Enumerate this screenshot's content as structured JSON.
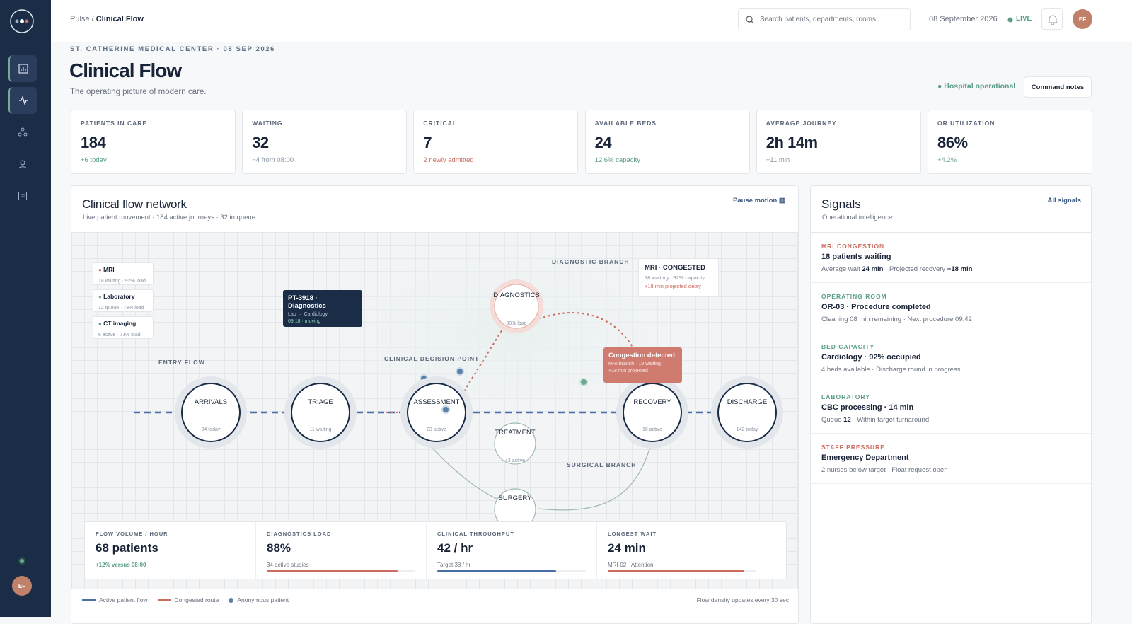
{
  "sidebar": {
    "avatar": "EF"
  },
  "topbar": {
    "breadcrumb": [
      "Pulse",
      "Clinical Flow"
    ],
    "separator": "/",
    "search_placeholder": "Search patients, departments, rooms...",
    "date": "08 September 2026",
    "live": "LIVE",
    "avatar": "EF"
  },
  "header": {
    "eyebrow": "ST. CATHERINE MEDICAL CENTER · 08 SEP 2026",
    "title": "Clinical Flow",
    "subtitle": "The operating picture of modern care.",
    "status": "Hospital operational",
    "button": "Command notes"
  },
  "kpis": [
    {
      "label": "PATIENTS IN CARE",
      "value": "184",
      "delta": "+6 today",
      "color": "#5a9e8a"
    },
    {
      "label": "WAITING",
      "value": "32",
      "delta": "−4 from 08:00",
      "color": "#8a94a3"
    },
    {
      "label": "CRITICAL",
      "value": "7",
      "delta": "2 newly admitted",
      "color": "#cc6b5f"
    },
    {
      "label": "AVAILABLE BEDS",
      "value": "24",
      "delta": "12.6% capacity",
      "color": "#5a9e8a"
    },
    {
      "label": "AVERAGE JOURNEY",
      "value": "2h 14m",
      "delta": "−11 min",
      "color": "#8a94a3"
    },
    {
      "label": "OR UTILIZATION",
      "value": "86%",
      "delta": "+4.2%",
      "color": "#7aa896"
    }
  ],
  "network": {
    "title": "Clinical flow network",
    "subtitle": "Live patient movement · 184 active journeys · 32 in queue",
    "action": "Pause motion",
    "resources": [
      {
        "name": "MRI",
        "detail": "18 waiting · 92% load",
        "color": "#cc6b5f"
      },
      {
        "name": "Laboratory",
        "detail": "12 queue · 78% load",
        "color": "#7aa896"
      },
      {
        "name": "CT imaging",
        "detail": "6 active · 71% load",
        "color": "#5a9e8a"
      }
    ],
    "tooltip": {
      "title": "PT-3918 · Diagnostics",
      "route": "Lab → Cardiology",
      "status": "09:18 · moving"
    },
    "labels": [
      "ENTRY FLOW",
      "CLINICAL DECISION POINT",
      "DIAGNOSTIC BRANCH",
      "SURGICAL BRANCH"
    ],
    "nodes": [
      {
        "label": "ARRIVALS",
        "detail": "84 today"
      },
      {
        "label": "TRIAGE",
        "detail": "11 waiting"
      },
      {
        "label": "ASSESSMENT",
        "detail": "23 active"
      },
      {
        "label": "RECOVERY",
        "detail": "16 active"
      },
      {
        "label": "DISCHARGE",
        "detail": "142 today"
      },
      {
        "label": "DIAGNOSTICS",
        "detail": "88% load"
      },
      {
        "label": "TREATMENT",
        "detail": "42 active"
      },
      {
        "label": "SURGERY",
        "detail": ""
      }
    ],
    "congested_card": {
      "title": "MRI · CONGESTED",
      "detail": "18 waiting · 92% capacity",
      "delay": "+18 min projected delay"
    },
    "alert": {
      "title": "Congestion detected",
      "lines": [
        "MRI branch · 18 waiting",
        "+18 min projected"
      ]
    },
    "metrics": [
      {
        "label": "FLOW VOLUME / HOUR",
        "value": "68 patients",
        "note": "+12% versus 08:00",
        "color": "#5a9e8a"
      },
      {
        "label": "DIAGNOSTICS LOAD",
        "value": "88%",
        "note": "34 active studies",
        "color": "#cc6b5f"
      },
      {
        "label": "CLINICAL THROUGHPUT",
        "value": "42 / hr",
        "note": "Target 38 / hr",
        "color": "#4a6fa5"
      },
      {
        "label": "LONGEST WAIT",
        "value": "24 min",
        "note": "MRI-02 · Attention",
        "color": "#cc6b5f"
      }
    ],
    "legend": [
      {
        "name": "Active patient flow",
        "color": "#4a6fa5"
      },
      {
        "name": "Congested route",
        "color": "#cc6b5f"
      },
      {
        "name": "Anonymous patient",
        "color": "#5a7fa8"
      }
    ],
    "footnote": "Flow density updates every 30 sec"
  },
  "signals": {
    "title": "Signals",
    "subtitle": "Operational intelligence",
    "action": "All signals",
    "items": [
      {
        "category": "MRI CONGESTION",
        "color": "#cc6b5f",
        "title": "18 patients waiting",
        "detail": [
          "Average wait ",
          "24 min",
          " · Projected recovery ",
          "+18 min"
        ]
      },
      {
        "category": "OPERATING ROOM",
        "color": "#5a9e8a",
        "title": "OR-03 · Procedure completed",
        "detail": [
          "Cleaning 08 min remaining · Next procedure 09:42"
        ]
      },
      {
        "category": "BED CAPACITY",
        "color": "#5a9e8a",
        "title": "Cardiology · 92% occupied",
        "detail": [
          "4 beds available · Discharge round in progress"
        ]
      },
      {
        "category": "LABORATORY",
        "color": "#5a9e8a",
        "title": "CBC processing · 14 min",
        "detail": [
          "Queue ",
          "12",
          " · Within target turnaround"
        ]
      },
      {
        "category": "STAFF PRESSURE",
        "color": "#cc6b5f",
        "title": "Emergency Department",
        "detail": [
          "2 nurses below target · Float request open"
        ]
      }
    ]
  }
}
